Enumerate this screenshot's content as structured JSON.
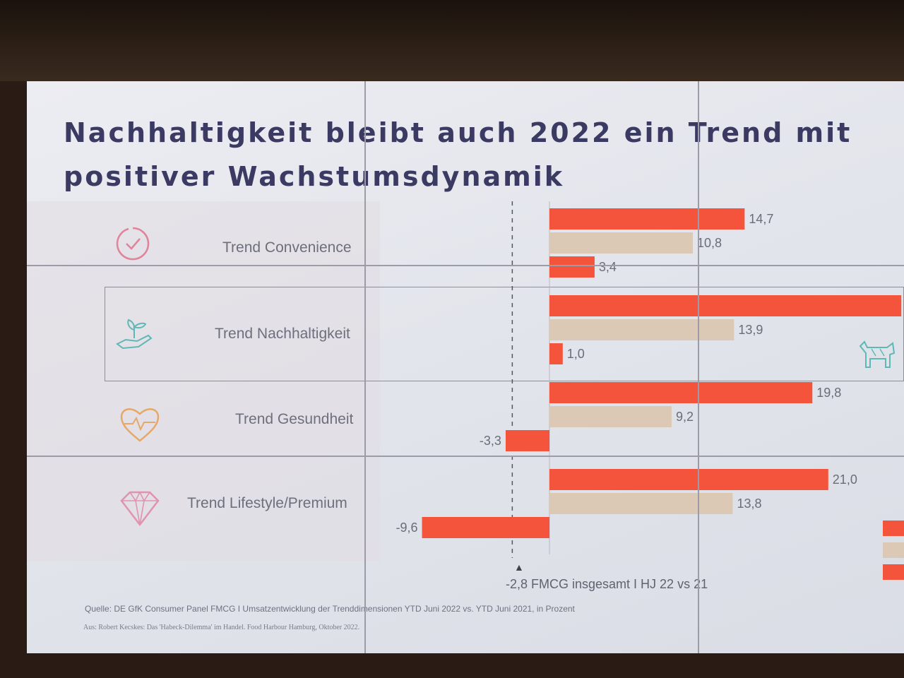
{
  "slide": {
    "title": "Nachhaltigkeit bleibt auch 2022 ein Trend mit positiver Wachstumsdynamik",
    "baseline_label": "-2,8 FMCG insgesamt I HJ 22 vs 21",
    "baseline_value": -2.8,
    "source_line_1": "Quelle: DE GfK Consumer Panel FMCG I Umsatzentwicklung der Trenddimensionen YTD Juni 2022 vs. YTD Juni 2021, in Prozent",
    "source_line_2": "Aus: Robert Kecskes: Das 'Habeck-Dilemma' im Handel. Food Harbour Hamburg, Oktober 2022.",
    "icons": [
      "recycle-check-icon",
      "hand-plant-icon",
      "heart-pulse-icon",
      "diamond-icon",
      "cow-icon"
    ]
  },
  "chart_data": {
    "type": "bar",
    "orientation": "horizontal",
    "categories": [
      "Trend Convenience",
      "Trend Nachhaltigkeit",
      "Trend Gesundheit",
      "Trend Lifestyle/Premium"
    ],
    "series": [
      {
        "color": "#f4543c",
        "values": [
          14.7,
          26.5,
          19.8,
          21.0
        ],
        "labels": [
          "14,7",
          "",
          "19,8",
          "21,0"
        ]
      },
      {
        "color": "#dcc9b5",
        "values": [
          10.8,
          13.9,
          9.2,
          13.8
        ],
        "labels": [
          "10,8",
          "13,9",
          "9,2",
          "13,8"
        ]
      },
      {
        "color": "#f4543c",
        "values": [
          3.4,
          1.0,
          -3.3,
          -9.6
        ],
        "labels": [
          "3,4",
          "1,0",
          "-3,3",
          "-9,6"
        ]
      }
    ],
    "xlim": [
      -10.5,
      26.5
    ],
    "legend_position": "right",
    "reference_line": -2.8
  }
}
